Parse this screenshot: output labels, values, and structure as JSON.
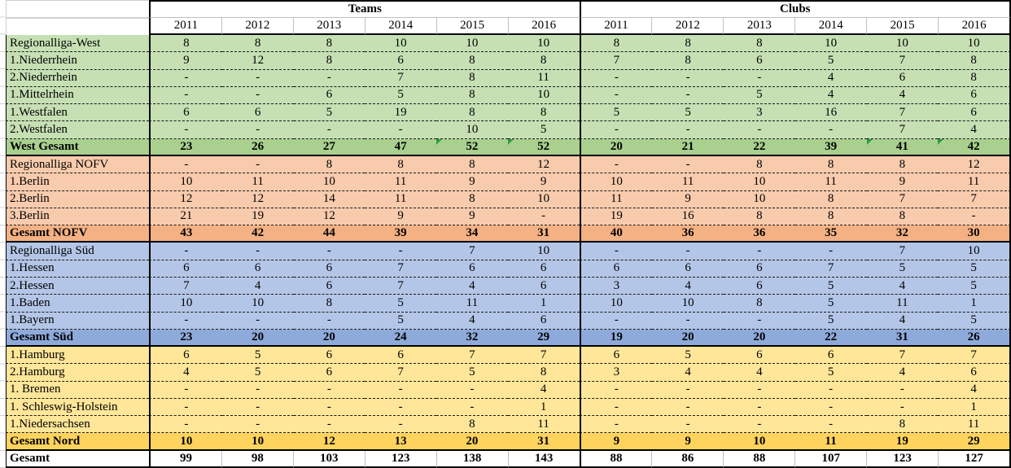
{
  "header": {
    "groups": [
      "Teams",
      "Clubs"
    ],
    "years": [
      "2011",
      "2012",
      "2013",
      "2014",
      "2015",
      "2016"
    ]
  },
  "colors": {
    "west_light": "#C6E0B4",
    "west_dark": "#A9D08E",
    "nofv_light": "#F8CBAD",
    "nofv_dark": "#F4B183",
    "sued_light": "#B4C6E7",
    "sued_dark": "#8EAADB",
    "nord_light": "#FFE699",
    "nord_dark": "#FFD45E",
    "grand_bg": "#FFFFFF",
    "flag": "#2F9E44",
    "border": "#000000",
    "grid_light": "#BFBFBF"
  },
  "sections": [
    {
      "id": "west",
      "light": "#C6E0B4",
      "dark": "#A9D08E",
      "rows": [
        {
          "label": "Regionalliga-West",
          "teams": [
            "8",
            "8",
            "8",
            "10",
            "10",
            "10"
          ],
          "clubs": [
            "8",
            "8",
            "8",
            "10",
            "10",
            "10"
          ]
        },
        {
          "label": "1.Niederrhein",
          "teams": [
            "9",
            "12",
            "8",
            "6",
            "8",
            "8"
          ],
          "clubs": [
            "7",
            "8",
            "6",
            "5",
            "7",
            "8"
          ]
        },
        {
          "label": "2.Niederrhein",
          "teams": [
            "-",
            "-",
            "-",
            "7",
            "8",
            "11"
          ],
          "clubs": [
            "-",
            "-",
            "-",
            "4",
            "6",
            "8"
          ]
        },
        {
          "label": "1.Mittelrhein",
          "teams": [
            "-",
            "-",
            "6",
            "5",
            "8",
            "10"
          ],
          "clubs": [
            "-",
            "-",
            "5",
            "4",
            "4",
            "6"
          ]
        },
        {
          "label": "1.Westfalen",
          "teams": [
            "6",
            "6",
            "5",
            "19",
            "8",
            "8"
          ],
          "clubs": [
            "5",
            "5",
            "3",
            "16",
            "7",
            "6"
          ]
        },
        {
          "label": "2.Westfalen",
          "teams": [
            "-",
            "-",
            "-",
            "-",
            "10",
            "5"
          ],
          "clubs": [
            "-",
            "-",
            "-",
            "-",
            "7",
            "4"
          ]
        }
      ],
      "total": {
        "label": "West Gesamt",
        "teams": [
          "23",
          "26",
          "27",
          "47",
          "52",
          "52"
        ],
        "clubs": [
          "20",
          "21",
          "22",
          "39",
          "41",
          "42"
        ],
        "teams_flags": [
          4,
          5
        ],
        "clubs_flags": [
          4,
          5
        ]
      }
    },
    {
      "id": "nofv",
      "light": "#F8CBAD",
      "dark": "#F4B183",
      "rows": [
        {
          "label": "Regionalliga NOFV",
          "teams": [
            "-",
            "-",
            "8",
            "8",
            "8",
            "12"
          ],
          "clubs": [
            "-",
            "-",
            "8",
            "8",
            "8",
            "12"
          ]
        },
        {
          "label": "1.Berlin",
          "teams": [
            "10",
            "11",
            "10",
            "11",
            "9",
            "9"
          ],
          "clubs": [
            "10",
            "11",
            "10",
            "11",
            "9",
            "11"
          ]
        },
        {
          "label": "2.Berlin",
          "teams": [
            "12",
            "12",
            "14",
            "11",
            "8",
            "10"
          ],
          "clubs": [
            "11",
            "9",
            "10",
            "8",
            "7",
            "7"
          ]
        },
        {
          "label": "3.Berlin",
          "teams": [
            "21",
            "19",
            "12",
            "9",
            "9",
            "-"
          ],
          "clubs": [
            "19",
            "16",
            "8",
            "8",
            "8",
            "-"
          ]
        }
      ],
      "total": {
        "label": "Gesamt NOFV",
        "teams": [
          "43",
          "42",
          "44",
          "39",
          "34",
          "31"
        ],
        "clubs": [
          "40",
          "36",
          "36",
          "35",
          "32",
          "30"
        ],
        "teams_flags": [],
        "clubs_flags": []
      }
    },
    {
      "id": "sued",
      "light": "#B4C6E7",
      "dark": "#8EAADB",
      "rows": [
        {
          "label": "Regionalliga Süd",
          "teams": [
            "-",
            "-",
            "-",
            "-",
            "7",
            "10"
          ],
          "clubs": [
            "-",
            "-",
            "-",
            "-",
            "7",
            "10"
          ]
        },
        {
          "label": "1.Hessen",
          "teams": [
            "6",
            "6",
            "6",
            "7",
            "6",
            "6"
          ],
          "clubs": [
            "6",
            "6",
            "6",
            "7",
            "5",
            "5"
          ]
        },
        {
          "label": "2.Hessen",
          "teams": [
            "7",
            "4",
            "6",
            "7",
            "4",
            "6"
          ],
          "clubs": [
            "3",
            "4",
            "6",
            "5",
            "4",
            "5"
          ]
        },
        {
          "label": "1.Baden",
          "teams": [
            "10",
            "10",
            "8",
            "5",
            "11",
            "1"
          ],
          "clubs": [
            "10",
            "10",
            "8",
            "5",
            "11",
            "1"
          ]
        },
        {
          "label": "1.Bayern",
          "teams": [
            "-",
            "-",
            "-",
            "5",
            "4",
            "6"
          ],
          "clubs": [
            "-",
            "-",
            "-",
            "5",
            "4",
            "5"
          ]
        }
      ],
      "total": {
        "label": "Gesamt Süd",
        "teams": [
          "23",
          "20",
          "20",
          "24",
          "32",
          "29"
        ],
        "clubs": [
          "19",
          "20",
          "20",
          "22",
          "31",
          "26"
        ],
        "teams_flags": [],
        "clubs_flags": []
      }
    },
    {
      "id": "nord",
      "light": "#FFE699",
      "dark": "#FFD45E",
      "rows": [
        {
          "label": "1.Hamburg",
          "teams": [
            "6",
            "5",
            "6",
            "6",
            "7",
            "7"
          ],
          "clubs": [
            "6",
            "5",
            "6",
            "6",
            "7",
            "7"
          ]
        },
        {
          "label": "2.Hamburg",
          "teams": [
            "4",
            "5",
            "6",
            "7",
            "5",
            "8"
          ],
          "clubs": [
            "3",
            "4",
            "4",
            "5",
            "4",
            "6"
          ]
        },
        {
          "label": "1. Bremen",
          "teams": [
            "-",
            "-",
            "-",
            "-",
            "-",
            "4"
          ],
          "clubs": [
            "-",
            "-",
            "-",
            "-",
            "-",
            "4"
          ]
        },
        {
          "label": "1. Schleswig-Holstein",
          "teams": [
            "-",
            "-",
            "-",
            "-",
            "-",
            "1"
          ],
          "clubs": [
            "-",
            "-",
            "-",
            "-",
            "-",
            "1"
          ]
        },
        {
          "label": "1.Niedersachsen",
          "teams": [
            "-",
            "-",
            "-",
            "-",
            "8",
            "11"
          ],
          "clubs": [
            "-",
            "-",
            "-",
            "-",
            "8",
            "11"
          ]
        }
      ],
      "total": {
        "label": "Gesamt Nord",
        "teams": [
          "10",
          "10",
          "12",
          "13",
          "20",
          "31"
        ],
        "clubs": [
          "9",
          "9",
          "10",
          "11",
          "19",
          "29"
        ],
        "teams_flags": [],
        "clubs_flags": []
      }
    }
  ],
  "grand_total": {
    "label": "Gesamt",
    "teams": [
      "99",
      "98",
      "103",
      "123",
      "138",
      "143"
    ],
    "clubs": [
      "88",
      "86",
      "88",
      "107",
      "123",
      "127"
    ]
  }
}
